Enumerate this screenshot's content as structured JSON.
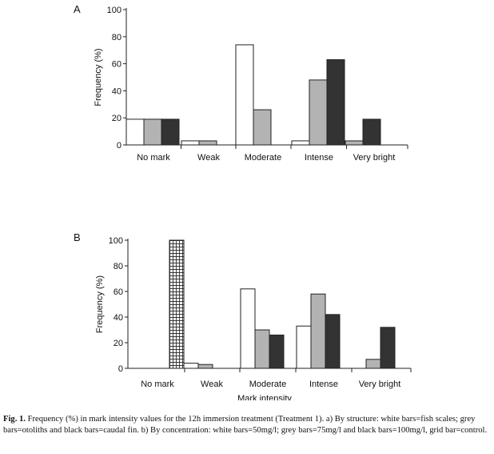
{
  "chart_data": [
    {
      "panel": "A",
      "type": "bar",
      "ylabel": "Frequency (%)",
      "xlabel": "",
      "ylim": [
        0,
        100
      ],
      "yticks": [
        0,
        20,
        40,
        60,
        80,
        100
      ],
      "categories": [
        "No mark",
        "Weak",
        "Moderate",
        "Intense",
        "Very bright"
      ],
      "series": [
        {
          "fill": "#ffffff",
          "values": [
            19,
            3,
            74,
            3,
            0
          ]
        },
        {
          "fill": "#b3b3b3",
          "values": [
            19,
            3,
            26,
            48,
            3
          ]
        },
        {
          "fill": "#333333",
          "values": [
            19,
            0,
            0,
            63,
            19
          ]
        }
      ]
    },
    {
      "panel": "B",
      "type": "bar",
      "ylabel": "Frequency (%)",
      "xlabel": "Mark intensity",
      "ylim": [
        0,
        100
      ],
      "yticks": [
        0,
        20,
        40,
        60,
        80,
        100
      ],
      "categories": [
        "No mark",
        "Weak",
        "Moderate",
        "Intense",
        "Very bright"
      ],
      "series": [
        {
          "fill": "grid",
          "values": [
            100,
            0,
            0,
            0,
            0
          ]
        },
        {
          "fill": "#ffffff",
          "values": [
            0,
            4,
            62,
            33,
            0
          ]
        },
        {
          "fill": "#b3b3b3",
          "values": [
            0,
            3,
            30,
            58,
            7
          ]
        },
        {
          "fill": "#333333",
          "values": [
            0,
            0,
            26,
            42,
            32
          ]
        }
      ]
    }
  ],
  "caption": {
    "label": "Fig. 1.",
    "text": "Frequency (%) in mark intensity values for the 12h immersion treatment (Treatment 1). a) By structure: white bars=fish scales; grey bars=otoliths and black bars=caudal fin. b) By concentration: white bars=50mg/l; grey bars=75mg/l and black bars=100mg/l, grid bar=control."
  }
}
